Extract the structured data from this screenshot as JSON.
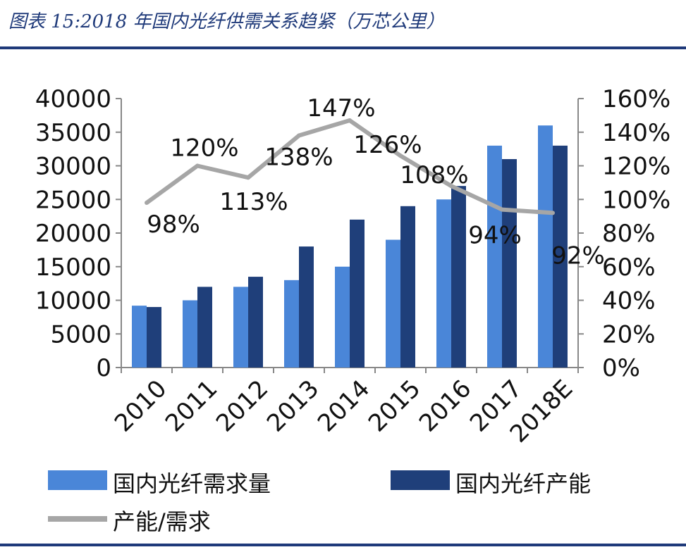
{
  "title": "图表 15:2018 年国内光纤供需关系趋紧（万芯公里）",
  "chart_data": {
    "type": "bar",
    "categories": [
      "2010",
      "2011",
      "2012",
      "2013",
      "2014",
      "2015",
      "2016",
      "2017",
      "2018E"
    ],
    "series": [
      {
        "name": "国内光纤需求量",
        "kind": "bar",
        "axis": "left",
        "color": "#4a86d8",
        "values": [
          9200,
          10000,
          12000,
          13000,
          15000,
          19000,
          25000,
          33000,
          36000
        ]
      },
      {
        "name": "国内光纤产能",
        "kind": "bar",
        "axis": "left",
        "color": "#1f3f7a",
        "values": [
          9000,
          12000,
          13500,
          18000,
          22000,
          24000,
          27000,
          31000,
          33000
        ]
      },
      {
        "name": "产能/需求",
        "kind": "line",
        "axis": "right",
        "color": "#a6a6a6",
        "values": [
          0.98,
          1.2,
          1.13,
          1.38,
          1.47,
          1.26,
          1.08,
          0.94,
          0.92
        ],
        "labels": [
          "98%",
          "120%",
          "113%",
          "138%",
          "147%",
          "126%",
          "108%",
          "94%",
          "92%"
        ]
      }
    ],
    "y_left": {
      "min": 0,
      "max": 40000,
      "ticks": [
        "0",
        "5000",
        "10000",
        "15000",
        "20000",
        "25000",
        "30000",
        "35000",
        "40000"
      ]
    },
    "y_right": {
      "min": 0,
      "max": 1.6,
      "ticks": [
        "0%",
        "20%",
        "40%",
        "60%",
        "80%",
        "100%",
        "120%",
        "140%",
        "160%"
      ]
    },
    "legend": [
      "国内光纤需求量",
      "国内光纤产能",
      "产能/需求"
    ],
    "legend_position": "bottom"
  }
}
